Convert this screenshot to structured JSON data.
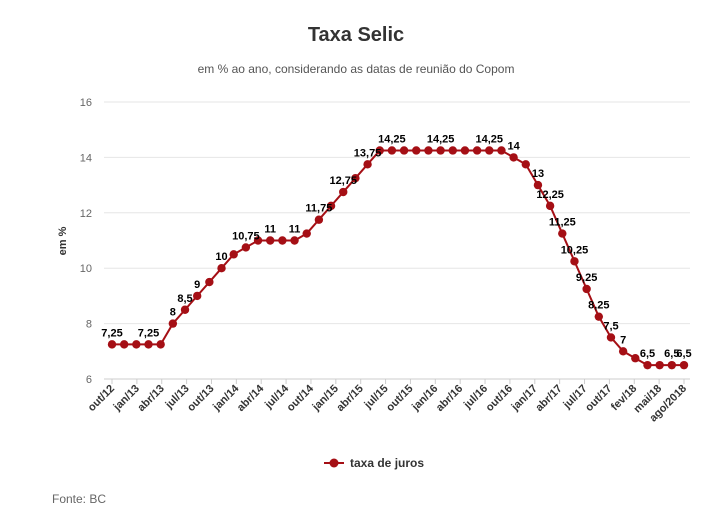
{
  "chart_data": {
    "type": "line",
    "title": "Taxa Selic",
    "subtitle": "em % ao ano, considerando as datas de reunião do Copom",
    "ylabel": "em %",
    "xlabel": "",
    "ylim": [
      6,
      16
    ],
    "yticks": [
      6,
      8,
      10,
      12,
      14,
      16
    ],
    "grid": true,
    "legend_position": "bottom",
    "source": "Fonte: BC",
    "x_tick_labels": [
      "out/12",
      "jan/13",
      "abr/13",
      "jul/13",
      "out/13",
      "jan/14",
      "abr/14",
      "jul/14",
      "out/14",
      "jan/15",
      "abr/15",
      "jul/15",
      "out/15",
      "jan/16",
      "abr/16",
      "jul/16",
      "out/16",
      "jan/17",
      "abr/17",
      "jul/17",
      "out/17",
      "fev/18",
      "mai/18",
      "ago/2018"
    ],
    "series": [
      {
        "name": "taxa de juros",
        "color": "#a50f15",
        "values": [
          7.25,
          7.25,
          7.25,
          7.25,
          7.25,
          8,
          8.5,
          9,
          9.5,
          10,
          10.5,
          10.75,
          11,
          11,
          11,
          11,
          11.25,
          11.75,
          12.25,
          12.75,
          13.25,
          13.75,
          14.25,
          14.25,
          14.25,
          14.25,
          14.25,
          14.25,
          14.25,
          14.25,
          14.25,
          14.25,
          14.25,
          14,
          13.75,
          13,
          12.25,
          11.25,
          10.25,
          9.25,
          8.25,
          7.5,
          7,
          6.75,
          6.5,
          6.5,
          6.5,
          6.5
        ]
      }
    ],
    "data_labels": [
      {
        "index": 0,
        "text": "7,25"
      },
      {
        "index": 3,
        "text": "7,25"
      },
      {
        "index": 5,
        "text": "8"
      },
      {
        "index": 6,
        "text": "8,5"
      },
      {
        "index": 7,
        "text": "9"
      },
      {
        "index": 9,
        "text": "10"
      },
      {
        "index": 11,
        "text": "10,75"
      },
      {
        "index": 13,
        "text": "11"
      },
      {
        "index": 15,
        "text": "11"
      },
      {
        "index": 17,
        "text": "11,75"
      },
      {
        "index": 19,
        "text": "12,75"
      },
      {
        "index": 21,
        "text": "13,75"
      },
      {
        "index": 23,
        "text": "14,25"
      },
      {
        "index": 27,
        "text": "14,25"
      },
      {
        "index": 31,
        "text": "14,25"
      },
      {
        "index": 33,
        "text": "14"
      },
      {
        "index": 35,
        "text": "13"
      },
      {
        "index": 36,
        "text": "12,25"
      },
      {
        "index": 37,
        "text": "11,25"
      },
      {
        "index": 38,
        "text": "10,25"
      },
      {
        "index": 39,
        "text": "9,25"
      },
      {
        "index": 40,
        "text": "8,25"
      },
      {
        "index": 41,
        "text": "7,5"
      },
      {
        "index": 42,
        "text": "7"
      },
      {
        "index": 44,
        "text": "6,5"
      },
      {
        "index": 46,
        "text": "6,5"
      },
      {
        "index": 47,
        "text": "6,5"
      }
    ]
  }
}
